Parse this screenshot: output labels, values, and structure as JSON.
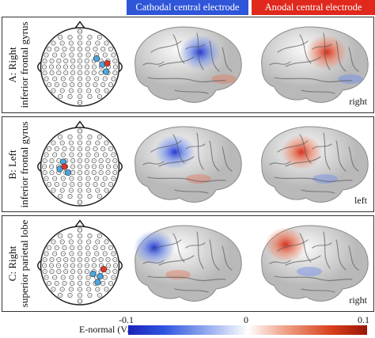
{
  "header": {
    "cathodal_label": "Cathodal central electrode",
    "anodal_label": "Anodal central electrode",
    "cathodal_color": "#2f55d8",
    "anodal_color": "#e0281c"
  },
  "panels": [
    {
      "label_line1": "A: Right",
      "label_line2": "inferior frontal gyrus",
      "hemisphere": "right",
      "blue_dots": [
        [
          108,
          68
        ],
        [
          118,
          78
        ],
        [
          124,
          90
        ]
      ],
      "red_dots": [
        [
          126,
          76
        ]
      ]
    },
    {
      "label_line1": "B: Left",
      "label_line2": "inferior frontal gyrus",
      "hemisphere": "left",
      "blue_dots": [
        [
          46,
          86
        ],
        [
          52,
          74
        ],
        [
          60,
          92
        ]
      ],
      "red_dots": [
        [
          54,
          82
        ]
      ]
    },
    {
      "label_line1": "C: Right",
      "label_line2": "superior parietal lobe",
      "hemisphere": "right",
      "blue_dots": [
        [
          102,
          96
        ],
        [
          114,
          100
        ],
        [
          110,
          110
        ]
      ],
      "red_dots": [
        [
          120,
          88
        ]
      ]
    }
  ],
  "colorbar": {
    "label": "E-normal (V/m)",
    "min_label": "-0.1",
    "mid_label": "0",
    "max_label": "0.1"
  }
}
